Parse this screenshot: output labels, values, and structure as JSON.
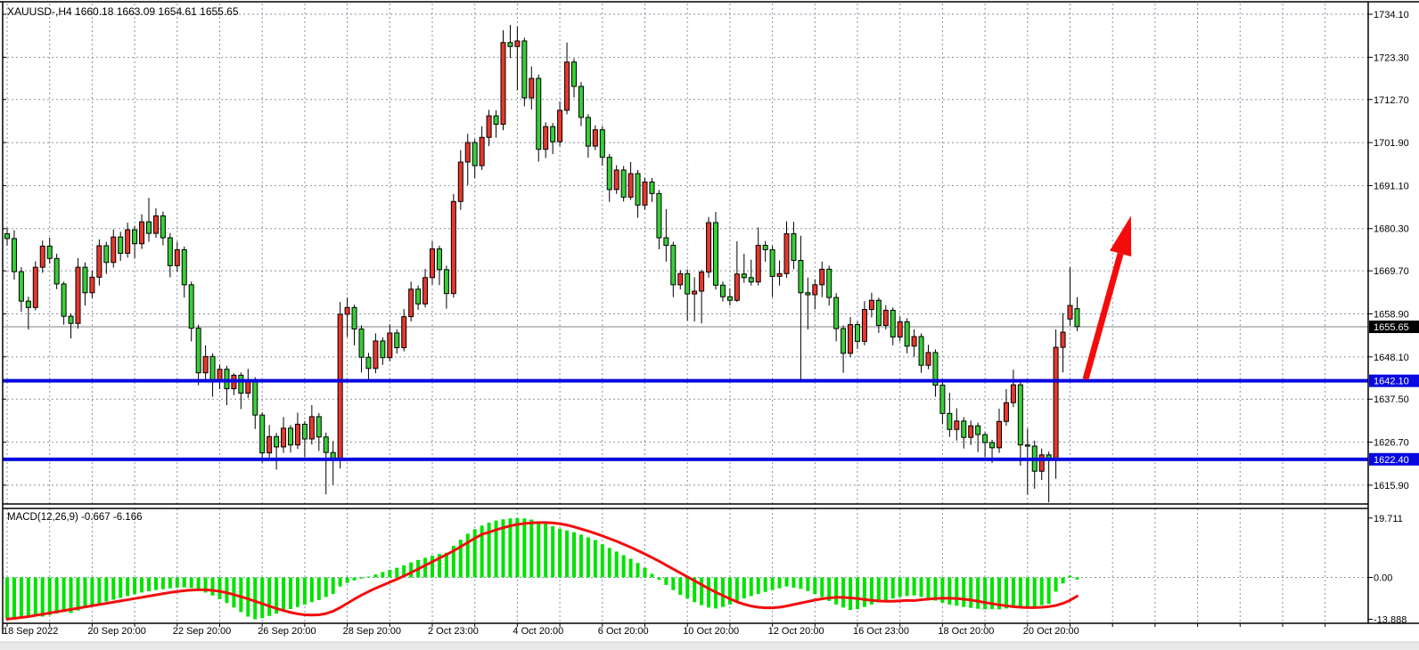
{
  "chart_data": {
    "type": "candlestick",
    "title": "XAUUSD-,H4 1660.18 1663.09 1654.61 1655.65",
    "symbol": "XAUUSD-",
    "timeframe": "H4",
    "ohlc_display": {
      "open": "1660.18",
      "high": "1663.09",
      "low": "1654.61",
      "close": "1655.65"
    },
    "price_axis_labels": [
      "1734.10",
      "1723.30",
      "1712.70",
      "1701.90",
      "1691.10",
      "1680.30",
      "1669.70",
      "1658.90",
      "1648.10",
      "1637.50",
      "1626.70",
      "1615.90"
    ],
    "current_price_label": "1655.65",
    "current_price": 1655.65,
    "support_levels": [
      "1642.10",
      "1622.40"
    ],
    "date_labels": [
      "18 Sep 2022",
      "20 Sep 20:00",
      "22 Sep 20:00",
      "26 Sep 20:00",
      "28 Sep 20:00",
      "2 Oct 23:00",
      "4 Oct 20:00",
      "6 Oct 20:00",
      "10 Oct 20:00",
      "12 Oct 20:00",
      "16 Oct 23:00",
      "18 Oct 20:00",
      "20 Oct 20:00"
    ],
    "ylim": [
      1611.0,
      1737.0
    ],
    "grid": "dashed",
    "candles": [
      [
        1679.0,
        1680.5,
        1676.0,
        1677.8
      ],
      [
        1677.8,
        1679.9,
        1667.5,
        1669.5
      ],
      [
        1669.5,
        1670.6,
        1659.4,
        1662.1
      ],
      [
        1662.1,
        1663.2,
        1655.0,
        1660.5
      ],
      [
        1660.5,
        1672.1,
        1659.8,
        1670.6
      ],
      [
        1670.6,
        1677.3,
        1669.2,
        1675.9
      ],
      [
        1675.9,
        1678.0,
        1671.5,
        1672.8
      ],
      [
        1672.8,
        1674.0,
        1665.1,
        1666.4
      ],
      [
        1666.4,
        1667.0,
        1656.2,
        1658.3
      ],
      [
        1658.3,
        1659.0,
        1652.7,
        1656.5
      ],
      [
        1656.5,
        1672.9,
        1655.2,
        1670.6
      ],
      [
        1670.6,
        1671.8,
        1661.0,
        1664.2
      ],
      [
        1664.2,
        1669.8,
        1662.9,
        1668.1
      ],
      [
        1668.1,
        1677.6,
        1666.0,
        1676.0
      ],
      [
        1676.0,
        1677.0,
        1668.9,
        1671.8
      ],
      [
        1671.8,
        1680.1,
        1670.5,
        1678.2
      ],
      [
        1678.2,
        1679.5,
        1672.2,
        1674.1
      ],
      [
        1674.1,
        1681.8,
        1673.0,
        1680.0
      ],
      [
        1680.0,
        1681.0,
        1672.9,
        1676.5
      ],
      [
        1676.5,
        1683.9,
        1675.2,
        1682.0
      ],
      [
        1682.0,
        1688.0,
        1677.0,
        1679.1
      ],
      [
        1679.1,
        1685.4,
        1678.0,
        1683.5
      ],
      [
        1683.5,
        1684.6,
        1676.1,
        1678.0
      ],
      [
        1678.0,
        1679.2,
        1668.1,
        1671.0
      ],
      [
        1671.0,
        1677.0,
        1669.5,
        1675.0
      ],
      [
        1675.0,
        1675.8,
        1663.0,
        1666.2
      ],
      [
        1666.2,
        1667.0,
        1652.0,
        1655.3
      ],
      [
        1655.3,
        1656.2,
        1641.0,
        1644.1
      ],
      [
        1644.1,
        1651.0,
        1642.5,
        1648.2
      ],
      [
        1648.2,
        1649.0,
        1638.1,
        1642.0
      ],
      [
        1642.0,
        1646.2,
        1640.0,
        1645.0
      ],
      [
        1645.0,
        1645.9,
        1636.0,
        1640.1
      ],
      [
        1640.1,
        1644.0,
        1638.5,
        1643.5
      ],
      [
        1643.5,
        1644.2,
        1635.0,
        1639.0
      ],
      [
        1639.0,
        1645.1,
        1637.8,
        1642.2
      ],
      [
        1642.2,
        1643.0,
        1630.0,
        1633.5
      ],
      [
        1633.5,
        1634.2,
        1621.5,
        1624.0
      ],
      [
        1624.0,
        1631.0,
        1622.0,
        1628.1
      ],
      [
        1628.1,
        1629.0,
        1619.8,
        1625.5
      ],
      [
        1625.5,
        1633.0,
        1624.0,
        1630.2
      ],
      [
        1630.2,
        1631.0,
        1624.1,
        1626.0
      ],
      [
        1626.0,
        1634.1,
        1625.0,
        1631.2
      ],
      [
        1631.2,
        1632.0,
        1622.9,
        1627.5
      ],
      [
        1627.5,
        1636.0,
        1626.1,
        1633.1
      ],
      [
        1633.1,
        1634.0,
        1624.5,
        1628.0
      ],
      [
        1628.0,
        1629.1,
        1613.6,
        1624.1
      ],
      [
        1624.1,
        1627.0,
        1616.0,
        1622.5
      ],
      [
        1622.5,
        1661.9,
        1620.1,
        1658.8
      ],
      [
        1658.8,
        1663.0,
        1653.1,
        1660.5
      ],
      [
        1660.5,
        1661.2,
        1651.0,
        1655.1
      ],
      [
        1655.1,
        1656.0,
        1644.2,
        1648.0
      ],
      [
        1648.0,
        1649.1,
        1641.9,
        1645.2
      ],
      [
        1645.2,
        1654.0,
        1644.0,
        1652.1
      ],
      [
        1652.1,
        1653.0,
        1646.1,
        1647.9
      ],
      [
        1647.9,
        1656.2,
        1647.0,
        1654.1
      ],
      [
        1654.1,
        1655.0,
        1648.9,
        1650.4
      ],
      [
        1650.4,
        1660.1,
        1649.5,
        1658.2
      ],
      [
        1658.2,
        1667.0,
        1657.0,
        1665.1
      ],
      [
        1665.1,
        1666.0,
        1659.9,
        1661.4
      ],
      [
        1661.4,
        1670.2,
        1660.5,
        1668.0
      ],
      [
        1668.0,
        1677.1,
        1666.2,
        1675.2
      ],
      [
        1675.2,
        1676.0,
        1666.1,
        1670.0
      ],
      [
        1670.0,
        1671.0,
        1660.2,
        1664.0
      ],
      [
        1664.0,
        1689.0,
        1663.0,
        1687.1
      ],
      [
        1687.1,
        1700.0,
        1685.0,
        1697.0
      ],
      [
        1697.0,
        1704.1,
        1691.2,
        1701.9
      ],
      [
        1701.9,
        1702.8,
        1693.0,
        1696.1
      ],
      [
        1696.1,
        1706.0,
        1695.0,
        1703.2
      ],
      [
        1703.2,
        1710.1,
        1701.0,
        1708.6
      ],
      [
        1708.6,
        1710.0,
        1703.1,
        1706.5
      ],
      [
        1706.5,
        1730.1,
        1705.0,
        1727.0
      ],
      [
        1727.0,
        1731.4,
        1723.1,
        1726.0
      ],
      [
        1726.0,
        1731.0,
        1715.0,
        1727.4
      ],
      [
        1727.4,
        1728.2,
        1711.0,
        1713.1
      ],
      [
        1713.1,
        1721.0,
        1710.2,
        1718.0
      ],
      [
        1718.0,
        1719.0,
        1697.1,
        1700.2
      ],
      [
        1700.2,
        1707.0,
        1698.0,
        1705.9
      ],
      [
        1705.9,
        1706.8,
        1699.0,
        1702.1
      ],
      [
        1702.1,
        1712.2,
        1701.0,
        1710.0
      ],
      [
        1710.0,
        1727.0,
        1709.0,
        1722.1
      ],
      [
        1722.1,
        1723.0,
        1713.2,
        1716.0
      ],
      [
        1716.0,
        1717.1,
        1706.0,
        1708.2
      ],
      [
        1708.2,
        1709.0,
        1698.1,
        1701.0
      ],
      [
        1701.0,
        1706.2,
        1700.0,
        1705.1
      ],
      [
        1705.1,
        1706.0,
        1696.1,
        1698.2
      ],
      [
        1698.2,
        1699.0,
        1687.0,
        1690.1
      ],
      [
        1690.1,
        1696.2,
        1689.0,
        1695.0
      ],
      [
        1695.0,
        1696.0,
        1687.1,
        1688.2
      ],
      [
        1688.2,
        1697.0,
        1687.5,
        1694.1
      ],
      [
        1694.1,
        1695.0,
        1683.0,
        1686.2
      ],
      [
        1686.2,
        1693.1,
        1685.0,
        1692.0
      ],
      [
        1692.0,
        1693.0,
        1687.0,
        1689.1
      ],
      [
        1689.1,
        1690.0,
        1675.1,
        1678.0
      ],
      [
        1678.0,
        1685.2,
        1672.0,
        1676.1
      ],
      [
        1676.1,
        1677.0,
        1663.1,
        1666.2
      ],
      [
        1666.2,
        1669.9,
        1665.0,
        1669.0
      ],
      [
        1669.0,
        1670.1,
        1657.2,
        1663.9
      ],
      [
        1663.9,
        1668.1,
        1657.0,
        1664.6
      ],
      [
        1664.6,
        1670.0,
        1656.5,
        1669.4
      ],
      [
        1669.4,
        1683.2,
        1668.0,
        1681.8
      ],
      [
        1681.8,
        1684.5,
        1665.0,
        1666.1
      ],
      [
        1666.1,
        1667.0,
        1662.0,
        1663.2
      ],
      [
        1663.2,
        1665.3,
        1661.0,
        1662.3
      ],
      [
        1662.3,
        1677.1,
        1661.9,
        1668.9
      ],
      [
        1668.9,
        1674.0,
        1666.7,
        1668.0
      ],
      [
        1668.0,
        1672.5,
        1666.0,
        1666.9
      ],
      [
        1666.9,
        1680.6,
        1666.0,
        1676.1
      ],
      [
        1676.1,
        1677.2,
        1672.0,
        1675.0
      ],
      [
        1675.0,
        1676.0,
        1663.1,
        1668.3
      ],
      [
        1668.3,
        1672.3,
        1666.0,
        1669.0
      ],
      [
        1669.0,
        1682.1,
        1668.0,
        1679.0
      ],
      [
        1679.0,
        1682.0,
        1670.1,
        1672.3
      ],
      [
        1672.3,
        1678.5,
        1642.2,
        1664.2
      ],
      [
        1664.2,
        1668.0,
        1655.0,
        1663.7
      ],
      [
        1663.7,
        1667.6,
        1660.0,
        1666.2
      ],
      [
        1666.2,
        1672.0,
        1663.1,
        1670.1
      ],
      [
        1670.1,
        1671.0,
        1661.0,
        1663.0
      ],
      [
        1663.0,
        1664.1,
        1652.0,
        1655.2
      ],
      [
        1655.2,
        1656.0,
        1644.1,
        1649.0
      ],
      [
        1649.0,
        1658.1,
        1648.0,
        1656.2
      ],
      [
        1656.2,
        1657.0,
        1650.1,
        1652.0
      ],
      [
        1652.0,
        1662.1,
        1651.0,
        1660.0
      ],
      [
        1660.0,
        1664.2,
        1658.0,
        1662.3
      ],
      [
        1662.3,
        1663.0,
        1654.1,
        1656.0
      ],
      [
        1656.0,
        1661.1,
        1655.0,
        1659.8
      ],
      [
        1659.8,
        1660.5,
        1651.0,
        1653.1
      ],
      [
        1653.1,
        1658.2,
        1652.0,
        1656.9
      ],
      [
        1656.9,
        1657.8,
        1649.0,
        1650.8
      ],
      [
        1650.8,
        1655.0,
        1648.1,
        1653.2
      ],
      [
        1653.2,
        1654.0,
        1644.1,
        1646.0
      ],
      [
        1646.0,
        1651.1,
        1645.0,
        1649.2
      ],
      [
        1649.2,
        1650.0,
        1638.1,
        1641.0
      ],
      [
        1641.0,
        1642.0,
        1631.2,
        1633.9
      ],
      [
        1633.9,
        1639.1,
        1628.0,
        1629.9
      ],
      [
        1629.9,
        1635.2,
        1627.1,
        1632.0
      ],
      [
        1632.0,
        1633.0,
        1625.1,
        1627.9
      ],
      [
        1627.9,
        1632.1,
        1626.0,
        1630.8
      ],
      [
        1630.8,
        1631.6,
        1624.2,
        1628.6
      ],
      [
        1628.6,
        1629.2,
        1622.9,
        1626.6
      ],
      [
        1626.6,
        1627.3,
        1621.5,
        1625.3
      ],
      [
        1625.3,
        1635.1,
        1624.0,
        1631.9
      ],
      [
        1631.9,
        1640.0,
        1630.8,
        1636.6
      ],
      [
        1636.6,
        1644.9,
        1635.5,
        1641.1
      ],
      [
        1641.1,
        1641.8,
        1620.8,
        1626.0
      ],
      [
        1626.0,
        1630.1,
        1613.5,
        1625.7
      ],
      [
        1625.7,
        1627.1,
        1615.0,
        1619.4
      ],
      [
        1619.4,
        1625.1,
        1617.2,
        1623.5
      ],
      [
        1623.5,
        1624.3,
        1611.6,
        1622.2
      ],
      [
        1622.2,
        1655.0,
        1617.5,
        1650.5
      ],
      [
        1650.5,
        1659.1,
        1644.2,
        1654.3
      ],
      [
        1657.6,
        1670.6,
        1655.9,
        1661.0
      ],
      [
        1660.2,
        1663.1,
        1654.6,
        1655.7
      ]
    ],
    "macd": {
      "label": "MACD(12,26,9)",
      "macd_value": "-0.667",
      "signal_value": "-6.166",
      "display": "MACD(12,26,9) -0.667 -6.166",
      "axis_labels": [
        "19.711",
        "0.00",
        "-13.888"
      ],
      "axis_values": [
        19.711,
        0.0,
        -13.888
      ],
      "histogram": [
        -13.5,
        -13.9,
        -13.6,
        -13.2,
        -12.8,
        -13.0,
        -12.5,
        -12.0,
        -11.5,
        -11.8,
        -11.0,
        -10.2,
        -9.5,
        -8.8,
        -8.0,
        -7.4,
        -6.8,
        -6.2,
        -5.6,
        -5.0,
        -4.6,
        -4.2,
        -3.9,
        -3.6,
        -3.4,
        -3.3,
        -3.5,
        -4.2,
        -5.0,
        -6.0,
        -7.2,
        -8.5,
        -10.0,
        -11.5,
        -13.0,
        -13.9,
        -13.5,
        -12.8,
        -12.0,
        -11.2,
        -10.5,
        -9.8,
        -9.0,
        -8.2,
        -7.5,
        -6.5,
        -5.5,
        -3.0,
        -1.8,
        -1.0,
        -0.4,
        0.3,
        1.0,
        1.8,
        2.5,
        3.2,
        4.0,
        5.0,
        5.8,
        6.5,
        7.2,
        7.8,
        8.2,
        10.5,
        12.5,
        14.5,
        16.0,
        17.2,
        18.2,
        18.9,
        19.3,
        19.6,
        19.7,
        19.6,
        19.2,
        18.6,
        17.8,
        17.0,
        16.2,
        15.6,
        15.0,
        14.2,
        13.3,
        12.4,
        11.0,
        9.8,
        8.6,
        7.4,
        6.2,
        4.8,
        3.2,
        1.2,
        -0.8,
        -2.5,
        -4.2,
        -5.8,
        -7.0,
        -8.2,
        -9.2,
        -10.0,
        -10.3,
        -9.8,
        -9.0,
        -8.0,
        -7.0,
        -6.2,
        -5.5,
        -4.8,
        -4.2,
        -3.6,
        -3.0,
        -3.4,
        -3.8,
        -4.5,
        -5.5,
        -6.5,
        -7.8,
        -9.0,
        -10.0,
        -10.8,
        -10.5,
        -9.8,
        -9.0,
        -8.3,
        -7.6,
        -7.0,
        -6.5,
        -6.2,
        -6.0,
        -6.5,
        -7.0,
        -7.7,
        -8.4,
        -9.0,
        -9.4,
        -9.8,
        -10.1,
        -10.4,
        -10.6,
        -10.5,
        -10.6,
        -10.3,
        -10.0,
        -10.2,
        -10.0,
        -9.6,
        -9.2,
        -8.8,
        -4.7,
        -2.0,
        0.6,
        -0.7
      ],
      "signal": [
        -13.8,
        -13.6,
        -13.3,
        -13.0,
        -12.6,
        -12.2,
        -11.8,
        -11.4,
        -11.0,
        -10.6,
        -10.2,
        -9.8,
        -9.4,
        -9.0,
        -8.6,
        -8.2,
        -7.8,
        -7.4,
        -7.0,
        -6.6,
        -6.2,
        -5.8,
        -5.4,
        -5.0,
        -4.7,
        -4.4,
        -4.2,
        -4.1,
        -4.1,
        -4.3,
        -4.6,
        -5.1,
        -5.7,
        -6.4,
        -7.1,
        -7.9,
        -8.7,
        -9.5,
        -10.3,
        -11.0,
        -11.6,
        -12.1,
        -12.4,
        -12.5,
        -12.4,
        -12.0,
        -11.2,
        -10.0,
        -8.6,
        -7.2,
        -5.9,
        -4.7,
        -3.6,
        -2.6,
        -1.6,
        -0.6,
        0.5,
        1.6,
        2.8,
        4.0,
        5.2,
        6.4,
        7.6,
        8.8,
        10.2,
        11.6,
        13.0,
        14.3,
        15.0,
        15.8,
        16.5,
        17.1,
        17.6,
        17.9,
        18.1,
        18.2,
        18.2,
        18.1,
        17.8,
        17.4,
        16.8,
        16.1,
        15.4,
        14.6,
        13.8,
        12.9,
        12.0,
        11.0,
        10.0,
        8.9,
        7.8,
        6.6,
        5.4,
        4.1,
        2.8,
        1.5,
        0.2,
        -1.1,
        -2.4,
        -3.7,
        -4.9,
        -6.0,
        -7.1,
        -8.1,
        -8.9,
        -9.5,
        -9.9,
        -10.1,
        -10.1,
        -9.9,
        -9.5,
        -9.0,
        -8.5,
        -8.0,
        -7.5,
        -7.1,
        -6.8,
        -6.6,
        -6.6,
        -6.8,
        -7.0,
        -7.3,
        -7.6,
        -7.8,
        -7.9,
        -7.9,
        -7.8,
        -7.6,
        -7.7,
        -7.4,
        -7.2,
        -7.0,
        -6.9,
        -6.9,
        -7.0,
        -7.2,
        -7.5,
        -7.9,
        -8.3,
        -8.7,
        -9.1,
        -9.4,
        -9.7,
        -9.9,
        -10.0,
        -10.0,
        -9.9,
        -9.7,
        -9.3,
        -8.6,
        -7.6,
        -6.2
      ]
    },
    "arrow": {
      "tail_index": 152.2,
      "tail_price": 1642.5,
      "tip_index": 158.6,
      "tip_price": 1683.5
    },
    "colors": {
      "background": "#ffffff",
      "bull_candle": "#e8372d",
      "bear_candle": "#37cf37",
      "wick": "#000000",
      "histogram": "#00e200",
      "signal_line": "#f20d0d",
      "support_line": "#0808e0",
      "current_price_line": "#808080",
      "current_price_box": "#000000",
      "grid": "#8792a4",
      "axis": "#000000",
      "arrow": "#f40b0b",
      "bottom_strip": "#e9e9e9"
    }
  }
}
